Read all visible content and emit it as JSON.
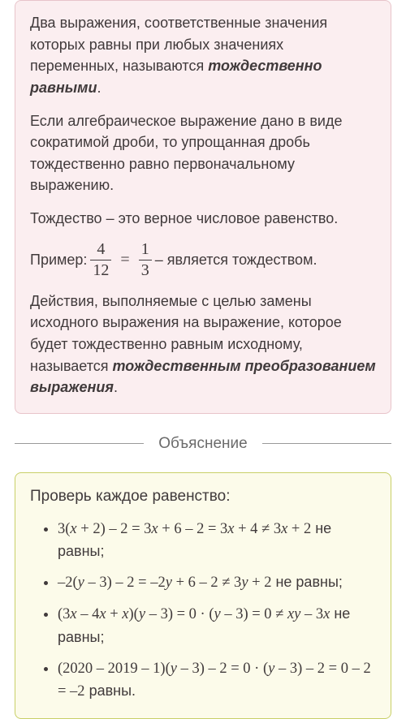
{
  "pink": {
    "p1_a": "Два выражения, соответственные значения которых равны при любых значениях переменных, называются ",
    "p1_b": "тождественно равными",
    "p1_c": ".",
    "p2": "Если алгебраическое выражение дано в виде сократимой дроби, то упрощанная дробь тождественно равно первоначальному выражению.",
    "p3": "Тождество – это верное числовое равенство.",
    "example_label": "Пример: ",
    "frac1_num": "4",
    "frac1_den": "12",
    "eq": "=",
    "frac2_num": "1",
    "frac2_den": "3",
    "example_tail": " – является тождеством.",
    "p5_a": "Действия, выполняемые с целью замены исходного выражения на выражение, которое будет тождественно равным исходному, называется ",
    "p5_b": "тождественным преобразованием выражения",
    "p5_c": "."
  },
  "divider": "Объяснение",
  "yellow": {
    "intro": "Проверь каждое равенство:",
    "items": [
      {
        "math": "3(<i>x</i> + 2) – 2 = 3<i>x</i> + 6 – 2 = 3<i>x</i> + 4 ≠ 3<i>x</i> + 2",
        "tail": " не равны;"
      },
      {
        "math": "–2(<i>y</i> – 3) – 2 = –2<i>y</i> + 6 – 2 ≠ 3<i>y</i> + 2",
        "tail": " не равны;"
      },
      {
        "math": "(3<i>x</i> – 4<i>x</i> + <i>x</i>)(<i>y</i> – 3) = 0 · (<i>y</i> – 3) = 0 ≠ <i>xy</i> – 3<i>x</i>",
        "tail": " не равны;"
      },
      {
        "math": "(2020 – 2019 – 1)(<i>y</i> – 3) – 2 = 0 · (<i>y</i> – 3) – 2 = 0 – 2 = –2",
        "tail": " равны."
      }
    ]
  },
  "colors": {
    "pink_bg": "#fbeef0",
    "pink_border": "#e8c4ca",
    "yellow_bg": "#fcfbea",
    "yellow_border": "#c8cf68",
    "text": "#403a3b",
    "divider_text": "#6b6b6b",
    "divider_line": "#9a9a9a"
  }
}
